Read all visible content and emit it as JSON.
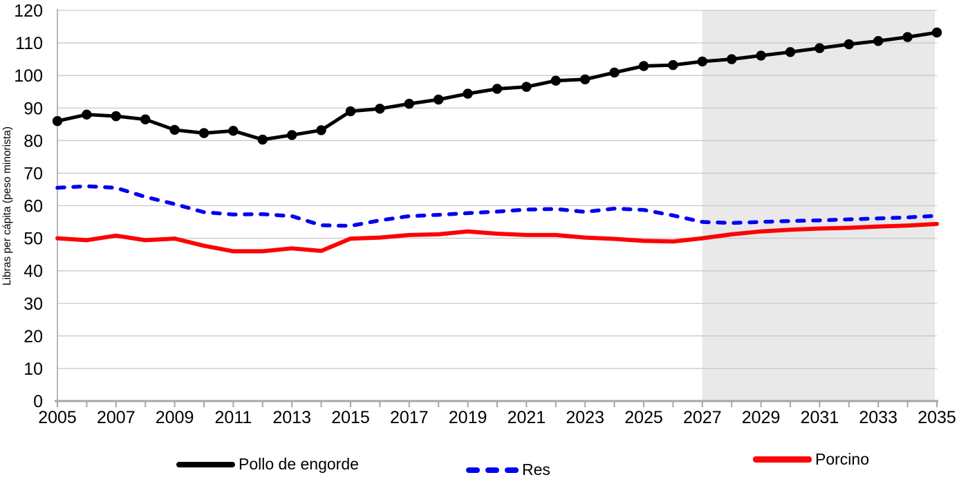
{
  "chart_data": {
    "type": "line",
    "title": "",
    "xlabel": "",
    "ylabel": "Libras per cápita (peso minorista)",
    "x": [
      2005,
      2006,
      2007,
      2008,
      2009,
      2010,
      2011,
      2012,
      2013,
      2014,
      2015,
      2016,
      2017,
      2018,
      2019,
      2020,
      2021,
      2022,
      2023,
      2024,
      2025,
      2026,
      2027,
      2028,
      2029,
      2030,
      2031,
      2032,
      2033,
      2034,
      2035
    ],
    "x_tick_labels": [
      "2005",
      "2007",
      "2009",
      "2011",
      "2013",
      "2015",
      "2017",
      "2019",
      "2021",
      "2023",
      "2025",
      "2027",
      "2029",
      "2031",
      "2033",
      "2035"
    ],
    "y_tick_labels": [
      "0",
      "10",
      "20",
      "30",
      "40",
      "50",
      "60",
      "70",
      "80",
      "90",
      "100",
      "110",
      "120"
    ],
    "ylim": [
      0,
      120
    ],
    "grid": "horizontal",
    "legend_position": "bottom",
    "forecast_shading": {
      "from": 2027,
      "to": 2035,
      "color": "#e9e9e9"
    },
    "series": [
      {
        "name": "Pollo de engorde",
        "color": "#000000",
        "style": "solid",
        "markers": true,
        "values": [
          86,
          88,
          87.5,
          86.5,
          83.3,
          82.3,
          83,
          80.3,
          81.7,
          83.2,
          89,
          89.8,
          91.3,
          92.6,
          94.4,
          95.9,
          96.5,
          98.4,
          98.8,
          100.9,
          102.9,
          103.2,
          104.3,
          105,
          106.1,
          107.2,
          108.4,
          109.6,
          110.6,
          111.8,
          113.2
        ]
      },
      {
        "name": "Res",
        "color": "#0202ee",
        "style": "dashed",
        "markers": false,
        "values": [
          65.5,
          66,
          65.5,
          62.7,
          60.5,
          58,
          57.3,
          57.4,
          56.8,
          54,
          53.8,
          55.5,
          56.8,
          57.2,
          57.7,
          58.2,
          58.8,
          59,
          58.1,
          59.1,
          58.7,
          57,
          55,
          54.7,
          55,
          55.3,
          55.5,
          55.8,
          56.1,
          56.4,
          56.9
        ]
      },
      {
        "name": "Porcino",
        "color": "#fb0404",
        "style": "solid",
        "markers": false,
        "values": [
          50,
          49.4,
          50.8,
          49.4,
          49.9,
          47.7,
          46,
          46,
          46.9,
          46.1,
          49.9,
          50.2,
          51,
          51.2,
          52.1,
          51.4,
          51,
          51,
          50.2,
          49.8,
          49.2,
          49,
          50,
          51.2,
          52.1,
          52.6,
          53,
          53.2,
          53.6,
          53.9,
          54.4
        ]
      }
    ],
    "colors": {
      "gridline": "#c9c9c9",
      "axis": "#a6a6a6",
      "tick_text": "#000000"
    }
  }
}
